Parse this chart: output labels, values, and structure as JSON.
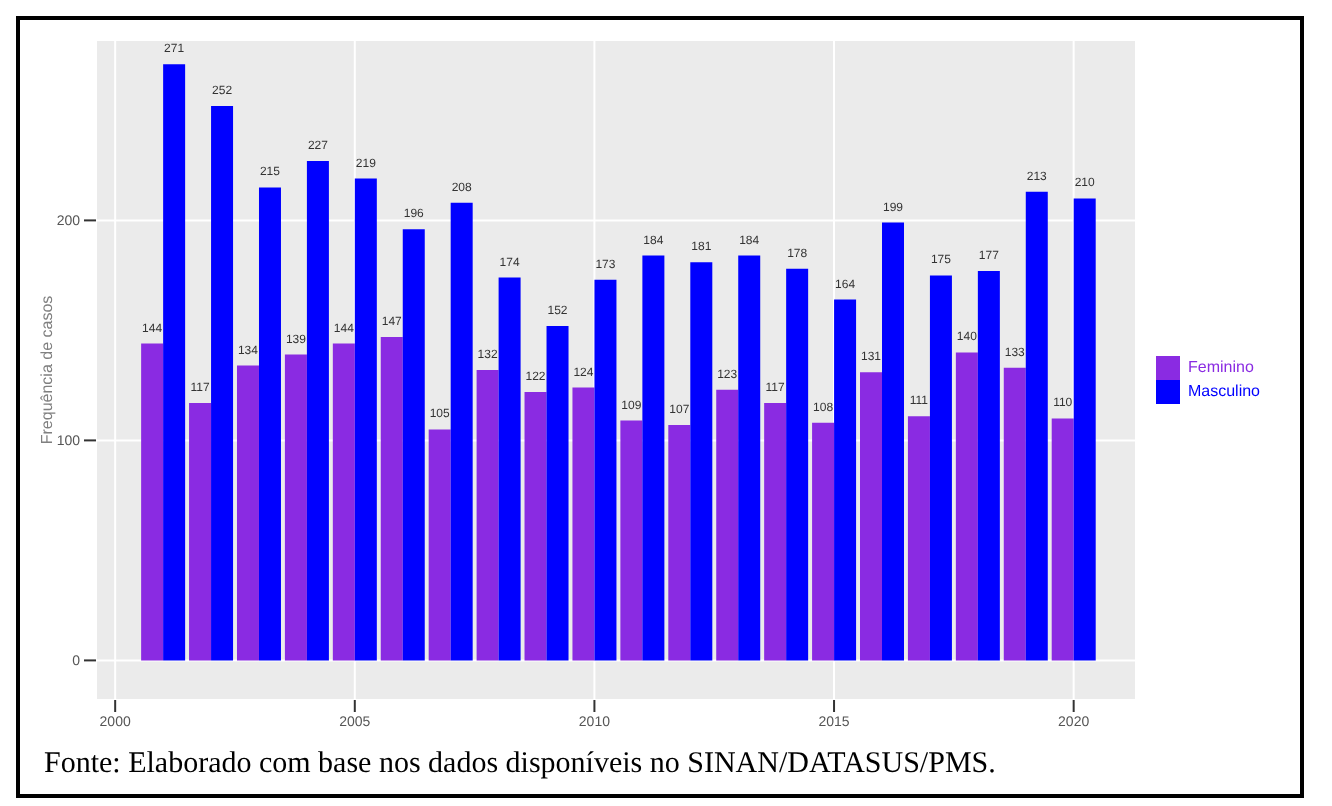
{
  "chart_data": {
    "type": "bar",
    "ylabel": "Frequência de casos",
    "x": [
      2001,
      2002,
      2003,
      2004,
      2005,
      2006,
      2007,
      2008,
      2009,
      2010,
      2011,
      2012,
      2013,
      2014,
      2015,
      2016,
      2017,
      2018,
      2019,
      2020
    ],
    "series": [
      {
        "name": "Feminino",
        "color": "#8a2be2",
        "values": [
          144,
          117,
          134,
          139,
          144,
          147,
          105,
          132,
          122,
          124,
          109,
          107,
          123,
          117,
          108,
          131,
          111,
          140,
          133,
          110
        ]
      },
      {
        "name": "Masculino",
        "color": "#0000ff",
        "values": [
          271,
          252,
          215,
          227,
          219,
          196,
          208,
          174,
          152,
          173,
          184,
          181,
          184,
          178,
          164,
          199,
          175,
          177,
          213,
          210
        ]
      }
    ],
    "xlim": [
      1999.6,
      2021.3
    ],
    "xticks": [
      2000,
      2005,
      2010,
      2015,
      2020
    ],
    "ylim": [
      -18,
      282
    ],
    "yticks": [
      0,
      100,
      200
    ],
    "grid": true,
    "legend": "right",
    "data_labels": true,
    "annotations": [
      "Fonte: Elaborado com base nos dados disponíveis no SINAN/DATASUS/PMS."
    ]
  }
}
